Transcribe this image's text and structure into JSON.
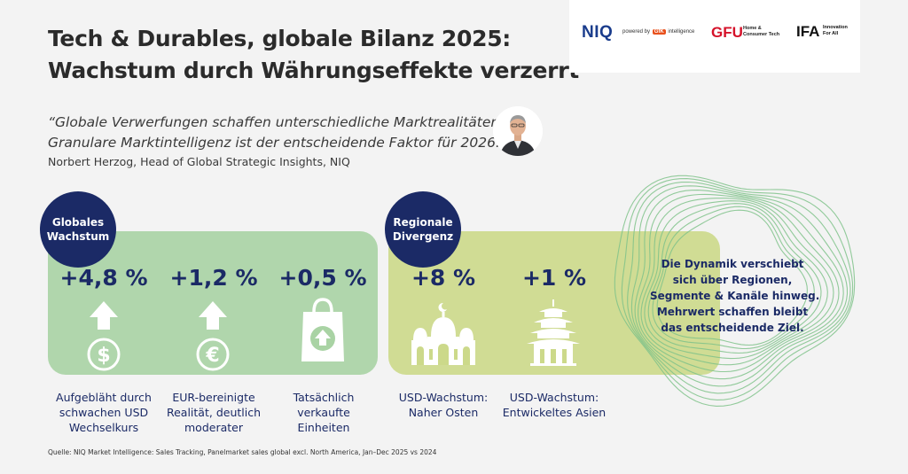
{
  "title": {
    "line1": "Tech & Durables, globale Bilanz 2025:",
    "line2": "Wachstum durch Währungseffekte verzerrt"
  },
  "logos": {
    "niq": "NIQ",
    "powered_by": "powered by",
    "gfk": "GfK",
    "intelligence": "intelligence",
    "gfu": "GFU",
    "gfu_sub_line1": "Home &",
    "gfu_sub_line2": "Consumer Tech",
    "ifa": "IFA",
    "ifa_sub_line1": "Innovation",
    "ifa_sub_line2": "For All"
  },
  "quote": {
    "line1": "“Globale Verwerfungen schaffen unterschiedliche Marktrealitäten.",
    "line2": "Granulare Marktintelligenz ist der entscheidende Faktor für 2026.”",
    "author": "Norbert Herzog, Head of Global Strategic Insights, NIQ"
  },
  "global": {
    "badge_line1": "Globales",
    "badge_line2": "Wachstum",
    "metrics": [
      {
        "value": "+4,8 %",
        "icon": "dollar-up-icon",
        "caption": [
          "Aufgebläht durch",
          "schwachen USD",
          "Wechselkurs"
        ]
      },
      {
        "value": "+1,2 %",
        "icon": "euro-up-icon",
        "caption": [
          "EUR-bereinigte",
          "Realität, deutlich",
          "moderater"
        ]
      },
      {
        "value": "+0,5 %",
        "icon": "shopping-bag-icon",
        "caption": [
          "Tatsächlich",
          "verkaufte",
          "Einheiten"
        ]
      }
    ]
  },
  "regional": {
    "badge_line1": "Regionale",
    "badge_line2": "Divergenz",
    "metrics": [
      {
        "value": "+8 %",
        "icon": "mosque-icon",
        "caption": [
          "USD-Wachstum:",
          "Naher Osten"
        ]
      },
      {
        "value": "+1 %",
        "icon": "pagoda-icon",
        "caption": [
          "USD-Wachstum:",
          "Entwickeltes Asien"
        ]
      }
    ]
  },
  "dynamics": {
    "line1": "Die Dynamik verschiebt",
    "line2": "sich über Regionen,",
    "line3": "Segmente & Kanäle hinweg.",
    "line4": "Mehrwert schaffen bleibt",
    "line5": "das entscheidende Ziel."
  },
  "source": "Quelle: NIQ Market Intelligence: Sales Tracking, Panelmarket sales global excl. North America, Jan–Dec 2025 vs 2024",
  "colors": {
    "navy": "#1b2a66",
    "green_panel": "#a9d3a4",
    "yellow_panel": "#ccd98a",
    "ring_green": "#7fc28a"
  }
}
